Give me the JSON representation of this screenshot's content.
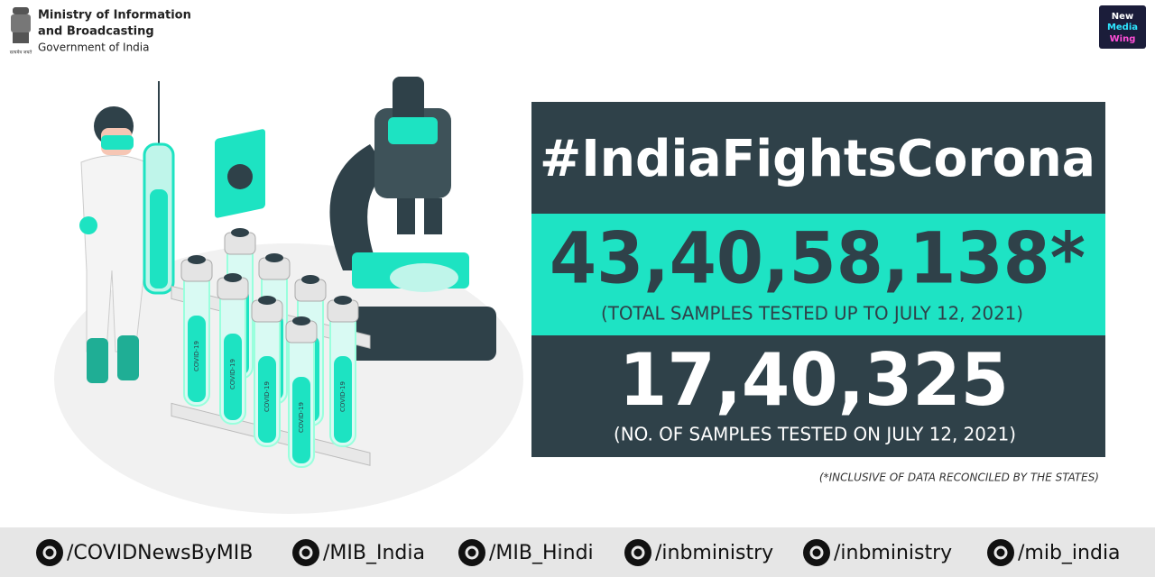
{
  "header": {
    "ministry_line1": "Ministry of Information",
    "ministry_line2": "and Broadcasting",
    "government": "Government of India",
    "emblem_motto": "सत्यमेव जयते"
  },
  "logo": {
    "line1": "New",
    "line2": "Media",
    "line3": "Wing"
  },
  "illustration": {
    "tube_label": "COVID-19"
  },
  "panel": {
    "hashtag": "#IndiaFightsCorona",
    "total": "43,40,58,138*",
    "total_caption": "(TOTAL SAMPLES TESTED UP TO JULY 12, 2021)",
    "daily": "17,40,325",
    "daily_caption": "(NO. OF SAMPLES TESTED ON JULY 12, 2021)",
    "footnote": "(*INCLUSIVE OF DATA RECONCILED BY THE STATES)"
  },
  "footer": {
    "handles": [
      "/COVIDNewsByMIB",
      "/MIB_India",
      "/MIB_Hindi",
      "/inbministry",
      "/inbministry",
      "/mib_india"
    ]
  }
}
